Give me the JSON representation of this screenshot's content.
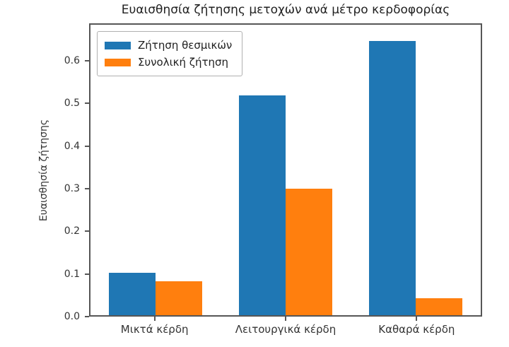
{
  "chart_data": {
    "type": "bar",
    "title": "Ευαισθησία ζήτησης μετοχών ανά μέτρο κερδοφορίας",
    "xlabel": "",
    "ylabel": "Ευαισθησία ζήτησης",
    "categories": [
      "Μικτά κέρδη",
      "Λειτουργικά κέρδη",
      "Καθαρά κέρδη"
    ],
    "series": [
      {
        "name": "Ζήτηση θεσμικών",
        "color": "#1f77b4",
        "values": [
          0.1,
          0.52,
          0.65
        ]
      },
      {
        "name": "Συνολική ζήτηση",
        "color": "#ff7f0e",
        "values": [
          0.08,
          0.3,
          0.04
        ]
      }
    ],
    "ylim": [
      0,
      0.688
    ],
    "yticks": [
      0.0,
      0.1,
      0.2,
      0.3,
      0.4,
      0.5,
      0.6
    ],
    "legend_position": "upper-left",
    "grid": false,
    "spine_color": "#565656"
  }
}
